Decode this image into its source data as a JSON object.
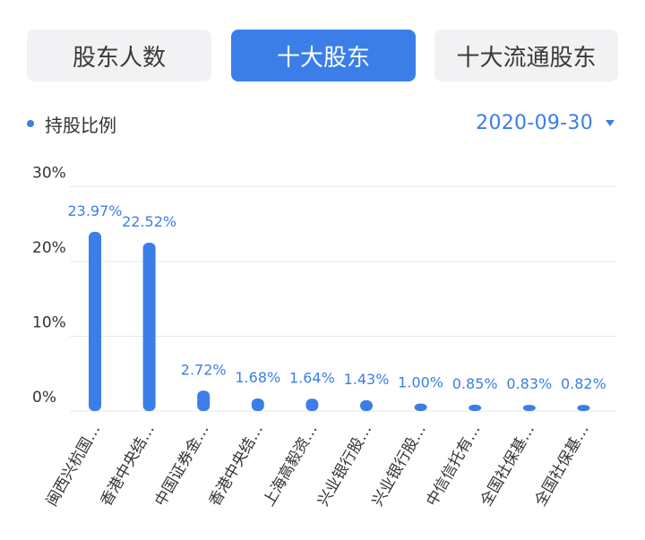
{
  "tabs": [
    {
      "label": "股东人数",
      "active": false
    },
    {
      "label": "十大股东",
      "active": true
    },
    {
      "label": "十大流通股东",
      "active": false
    }
  ],
  "legend": {
    "label": "持股比例",
    "color": "#3b7ee8"
  },
  "date_select": {
    "value": "2020-09-30"
  },
  "colors": {
    "accent": "#3b7ee8",
    "gridline": "#e8e8e8",
    "axis_text": "#333333"
  },
  "chart_data": {
    "type": "bar",
    "title": "",
    "xlabel": "",
    "ylabel": "",
    "ylim": [
      0,
      30
    ],
    "yticks": [
      {
        "value": 0,
        "label": "0%"
      },
      {
        "value": 10,
        "label": "10%"
      },
      {
        "value": 20,
        "label": "20%"
      },
      {
        "value": 30,
        "label": "30%"
      }
    ],
    "grid": true,
    "categories": [
      "闽西兴杭国…",
      "香港中央结…",
      "中国证券金…",
      "香港中央结…",
      "上海高毅资…",
      "兴业银行股…",
      "兴业银行股…",
      "中信信托有…",
      "全国社保基…",
      "全国社保基…"
    ],
    "values": [
      23.97,
      22.52,
      2.72,
      1.68,
      1.64,
      1.43,
      1.0,
      0.85,
      0.83,
      0.82
    ],
    "value_labels": [
      "23.97%",
      "22.52%",
      "2.72%",
      "1.68%",
      "1.64%",
      "1.43%",
      "1.00%",
      "0.85%",
      "0.83%",
      "0.82%"
    ]
  }
}
